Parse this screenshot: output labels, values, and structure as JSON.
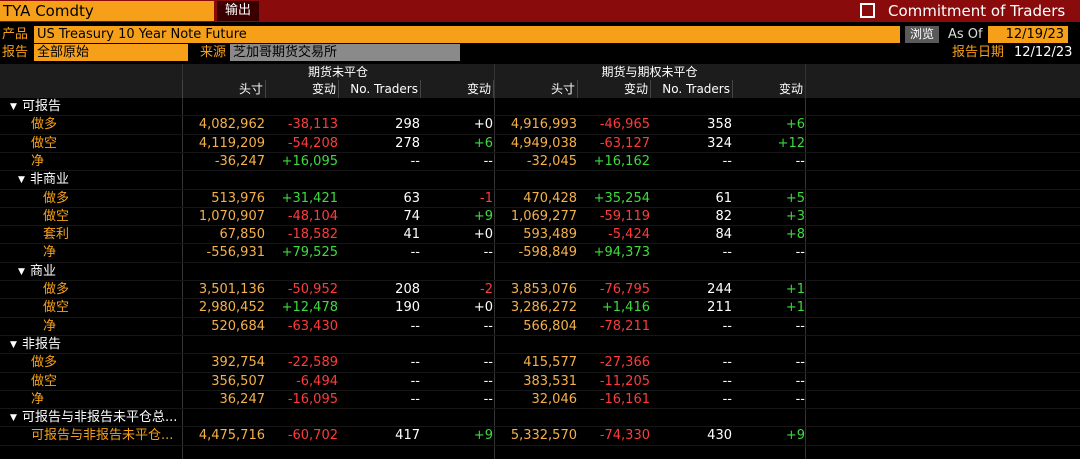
{
  "header": {
    "ticker": "TYA Comdty",
    "export": "输出",
    "title": "Commitment of Traders"
  },
  "fields": {
    "product_label": "产品",
    "product": "US Treasury 10 Year Note Future",
    "browse": "浏览",
    "as_of_label": "As Of",
    "as_of": "12/19/23",
    "report_label": "报告",
    "report": "全部原始",
    "source_label": "来源",
    "source": "芝加哥期货交易所",
    "report_date_label": "报告日期",
    "report_date": "12/12/23"
  },
  "table": {
    "groups": [
      "期货未平仓",
      "期货与期权未平仓"
    ],
    "columns": [
      "头寸",
      "变动",
      "No. Traders",
      "变动",
      "头寸",
      "变动",
      "No. Traders",
      "变动"
    ],
    "rows": [
      {
        "label": "可报告"
      },
      {
        "label": "做多",
        "cells": [
          "4,082,962",
          "-38,113",
          "298",
          "+0",
          "4,916,993",
          "-46,965",
          "358",
          "+6"
        ]
      },
      {
        "label": "做空",
        "cells": [
          "4,119,209",
          "-54,208",
          "278",
          "+6",
          "4,949,038",
          "-63,127",
          "324",
          "+12"
        ]
      },
      {
        "label": "净",
        "cells": [
          "-36,247",
          "+16,095",
          "--",
          "--",
          "-32,045",
          "+16,162",
          "--",
          "--"
        ]
      },
      {
        "label": "非商业"
      },
      {
        "label": "做多",
        "cells": [
          "513,976",
          "+31,421",
          "63",
          "-1",
          "470,428",
          "+35,254",
          "61",
          "+5"
        ]
      },
      {
        "label": "做空",
        "cells": [
          "1,070,907",
          "-48,104",
          "74",
          "+9",
          "1,069,277",
          "-59,119",
          "82",
          "+3"
        ]
      },
      {
        "label": "套利",
        "cells": [
          "67,850",
          "-18,582",
          "41",
          "+0",
          "593,489",
          "-5,424",
          "84",
          "+8"
        ]
      },
      {
        "label": "净",
        "cells": [
          "-556,931",
          "+79,525",
          "--",
          "--",
          "-598,849",
          "+94,373",
          "--",
          "--"
        ]
      },
      {
        "label": "商业"
      },
      {
        "label": "做多",
        "cells": [
          "3,501,136",
          "-50,952",
          "208",
          "-2",
          "3,853,076",
          "-76,795",
          "244",
          "+1"
        ]
      },
      {
        "label": "做空",
        "cells": [
          "2,980,452",
          "+12,478",
          "190",
          "+0",
          "3,286,272",
          "+1,416",
          "211",
          "+1"
        ]
      },
      {
        "label": "净",
        "cells": [
          "520,684",
          "-63,430",
          "--",
          "--",
          "566,804",
          "-78,211",
          "--",
          "--"
        ]
      },
      {
        "label": "非报告"
      },
      {
        "label": "做多",
        "cells": [
          "392,754",
          "-22,589",
          "--",
          "--",
          "415,577",
          "-27,366",
          "--",
          "--"
        ]
      },
      {
        "label": "做空",
        "cells": [
          "356,507",
          "-6,494",
          "--",
          "--",
          "383,531",
          "-11,205",
          "--",
          "--"
        ]
      },
      {
        "label": "净",
        "cells": [
          "36,247",
          "-16,095",
          "--",
          "--",
          "32,046",
          "-16,161",
          "--",
          "--"
        ]
      },
      {
        "label": "可报告与非报告未平仓总..."
      },
      {
        "label": "可报告与非报告未平仓...",
        "cells": [
          "4,475,716",
          "-60,702",
          "417",
          "+9",
          "5,332,570",
          "-74,330",
          "430",
          "+9"
        ]
      }
    ]
  }
}
